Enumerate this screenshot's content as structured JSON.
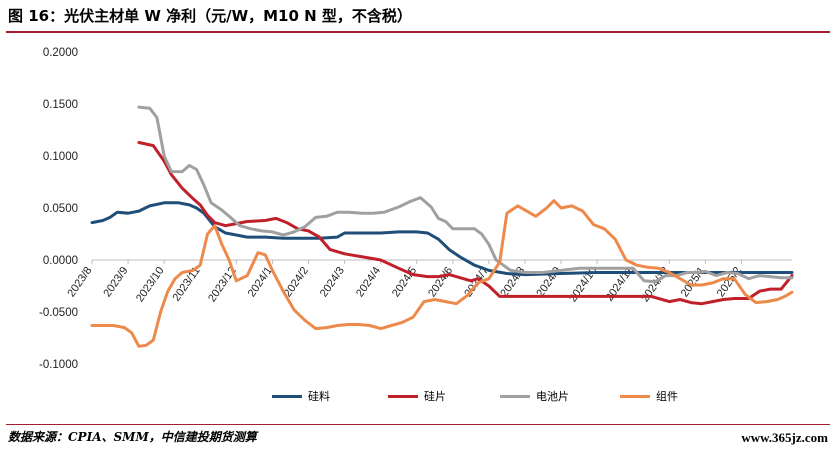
{
  "figure": {
    "title": "图 16：光伏主材单 W 净利（元/W，M10 N 型，不含税）",
    "source": "数据来源：CPIA、SMM，中信建投期货测算",
    "watermark": "www.365jz.com"
  },
  "chart_data": {
    "type": "line",
    "title": "",
    "xlabel": "",
    "ylabel": "",
    "ylim": [
      -0.1,
      0.2
    ],
    "yticks": [
      "0.2000",
      "0.1500",
      "0.1000",
      "0.0500",
      "0.0000",
      "-0.0500",
      "-0.1000"
    ],
    "ytick_values": [
      0.2,
      0.15,
      0.1,
      0.05,
      0.0,
      -0.05,
      -0.1
    ],
    "x_tick_labels": [
      "2023/8",
      "2023/9",
      "2023/10",
      "2023/11",
      "2023/12",
      "2024/1",
      "2024/2",
      "2024/3",
      "2024/4",
      "2024/5",
      "2024/6",
      "2024/7",
      "2024/8",
      "2024/9",
      "2024/10",
      "2024/11",
      "2024/12",
      "2025/1",
      "2025/2"
    ],
    "x_tick_display": [
      "2023/8",
      "2023/9",
      "2023/10",
      "2023/11",
      "2023/12",
      "2024/1",
      "2024/2",
      "2024/3",
      "2024/4",
      "2024/5",
      "2024/6",
      "2024/7",
      "2024/8",
      "2024/9",
      "2024/10",
      "2024/11",
      "2024/12",
      "2025/1",
      "2025/2"
    ],
    "x_range": [
      0,
      19.4
    ],
    "grid": false,
    "legend_position": "bottom",
    "series": [
      {
        "name": "硅料",
        "color": "#1f4e79",
        "points": [
          [
            0,
            0.036
          ],
          [
            0.3,
            0.038
          ],
          [
            0.5,
            0.041
          ],
          [
            0.7,
            0.046
          ],
          [
            1.0,
            0.045
          ],
          [
            1.3,
            0.047
          ],
          [
            1.6,
            0.052
          ],
          [
            2.0,
            0.055
          ],
          [
            2.4,
            0.055
          ],
          [
            2.7,
            0.053
          ],
          [
            2.9,
            0.05
          ],
          [
            3.1,
            0.045
          ],
          [
            3.4,
            0.032
          ],
          [
            3.7,
            0.026
          ],
          [
            4.0,
            0.024
          ],
          [
            4.3,
            0.022
          ],
          [
            4.8,
            0.022
          ],
          [
            5.3,
            0.021
          ],
          [
            5.8,
            0.021
          ],
          [
            6.3,
            0.021
          ],
          [
            6.8,
            0.022
          ],
          [
            7.0,
            0.026
          ],
          [
            7.5,
            0.026
          ],
          [
            8.0,
            0.026
          ],
          [
            8.5,
            0.027
          ],
          [
            9.0,
            0.027
          ],
          [
            9.3,
            0.026
          ],
          [
            9.6,
            0.02
          ],
          [
            9.9,
            0.01
          ],
          [
            10.2,
            0.003
          ],
          [
            10.6,
            -0.005
          ],
          [
            11.0,
            -0.01
          ],
          [
            11.5,
            -0.013
          ],
          [
            12.0,
            -0.014
          ],
          [
            13.0,
            -0.013
          ],
          [
            14.0,
            -0.012
          ],
          [
            15.0,
            -0.012
          ],
          [
            16.0,
            -0.012
          ],
          [
            17.0,
            -0.012
          ],
          [
            18.0,
            -0.012
          ],
          [
            19.0,
            -0.012
          ],
          [
            19.4,
            -0.012
          ]
        ]
      },
      {
        "name": "硅片",
        "color": "#c0202a",
        "points": [
          [
            1.3,
            0.113
          ],
          [
            1.7,
            0.11
          ],
          [
            2.0,
            0.095
          ],
          [
            2.2,
            0.082
          ],
          [
            2.5,
            0.069
          ],
          [
            2.8,
            0.059
          ],
          [
            3.0,
            0.053
          ],
          [
            3.2,
            0.043
          ],
          [
            3.4,
            0.036
          ],
          [
            3.7,
            0.033
          ],
          [
            4.0,
            0.035
          ],
          [
            4.3,
            0.037
          ],
          [
            4.8,
            0.038
          ],
          [
            5.1,
            0.04
          ],
          [
            5.4,
            0.036
          ],
          [
            5.7,
            0.03
          ],
          [
            6.0,
            0.028
          ],
          [
            6.3,
            0.022
          ],
          [
            6.6,
            0.01
          ],
          [
            7.0,
            0.006
          ],
          [
            7.5,
            0.003
          ],
          [
            8.0,
            0.0
          ],
          [
            8.5,
            -0.008
          ],
          [
            8.9,
            -0.014
          ],
          [
            9.3,
            -0.016
          ],
          [
            9.6,
            -0.016
          ],
          [
            9.9,
            -0.014
          ],
          [
            10.2,
            -0.017
          ],
          [
            10.5,
            -0.02
          ],
          [
            10.7,
            -0.018
          ],
          [
            11.0,
            -0.025
          ],
          [
            11.3,
            -0.035
          ],
          [
            11.6,
            -0.035
          ],
          [
            12.0,
            -0.035
          ],
          [
            12.5,
            -0.035
          ],
          [
            13.0,
            -0.035
          ],
          [
            13.5,
            -0.035
          ],
          [
            14.0,
            -0.035
          ],
          [
            14.5,
            -0.035
          ],
          [
            15.0,
            -0.035
          ],
          [
            15.5,
            -0.035
          ],
          [
            16.0,
            -0.04
          ],
          [
            16.3,
            -0.038
          ],
          [
            16.6,
            -0.041
          ],
          [
            16.9,
            -0.042
          ],
          [
            17.2,
            -0.04
          ],
          [
            17.5,
            -0.038
          ],
          [
            17.8,
            -0.037
          ],
          [
            18.2,
            -0.037
          ],
          [
            18.5,
            -0.03
          ],
          [
            18.8,
            -0.028
          ],
          [
            19.1,
            -0.028
          ],
          [
            19.4,
            -0.015
          ]
        ]
      },
      {
        "name": "电池片",
        "color": "#a0a0a0",
        "points": [
          [
            1.3,
            0.147
          ],
          [
            1.6,
            0.146
          ],
          [
            1.8,
            0.137
          ],
          [
            2.0,
            0.1
          ],
          [
            2.2,
            0.085
          ],
          [
            2.5,
            0.085
          ],
          [
            2.7,
            0.091
          ],
          [
            2.9,
            0.087
          ],
          [
            3.1,
            0.072
          ],
          [
            3.3,
            0.055
          ],
          [
            3.6,
            0.048
          ],
          [
            3.8,
            0.042
          ],
          [
            4.1,
            0.033
          ],
          [
            4.4,
            0.03
          ],
          [
            4.7,
            0.028
          ],
          [
            5.0,
            0.027
          ],
          [
            5.3,
            0.024
          ],
          [
            5.6,
            0.027
          ],
          [
            5.9,
            0.032
          ],
          [
            6.2,
            0.041
          ],
          [
            6.5,
            0.042
          ],
          [
            6.8,
            0.046
          ],
          [
            7.1,
            0.046
          ],
          [
            7.5,
            0.045
          ],
          [
            7.8,
            0.045
          ],
          [
            8.1,
            0.046
          ],
          [
            8.5,
            0.051
          ],
          [
            8.8,
            0.056
          ],
          [
            9.1,
            0.06
          ],
          [
            9.4,
            0.051
          ],
          [
            9.6,
            0.04
          ],
          [
            9.8,
            0.037
          ],
          [
            10.0,
            0.03
          ],
          [
            10.3,
            0.03
          ],
          [
            10.6,
            0.03
          ],
          [
            10.8,
            0.025
          ],
          [
            11.0,
            0.015
          ],
          [
            11.2,
            0.0
          ],
          [
            11.4,
            -0.005
          ],
          [
            11.6,
            -0.01
          ],
          [
            12.0,
            -0.012
          ],
          [
            12.5,
            -0.012
          ],
          [
            13.0,
            -0.01
          ],
          [
            13.5,
            -0.008
          ],
          [
            14.0,
            -0.008
          ],
          [
            14.5,
            -0.008
          ],
          [
            15.0,
            -0.008
          ],
          [
            15.3,
            -0.02
          ],
          [
            15.6,
            -0.021
          ],
          [
            15.9,
            -0.015
          ],
          [
            16.2,
            -0.015
          ],
          [
            16.5,
            -0.012
          ],
          [
            16.8,
            -0.012
          ],
          [
            17.0,
            -0.011
          ],
          [
            17.3,
            -0.015
          ],
          [
            17.6,
            -0.012
          ],
          [
            17.9,
            -0.013
          ],
          [
            18.2,
            -0.018
          ],
          [
            18.5,
            -0.015
          ],
          [
            18.8,
            -0.016
          ],
          [
            19.1,
            -0.017
          ],
          [
            19.4,
            -0.017
          ]
        ]
      },
      {
        "name": "组件",
        "color": "#ed8a4b",
        "points": [
          [
            0,
            -0.063
          ],
          [
            0.3,
            -0.063
          ],
          [
            0.6,
            -0.063
          ],
          [
            0.9,
            -0.065
          ],
          [
            1.1,
            -0.07
          ],
          [
            1.3,
            -0.083
          ],
          [
            1.5,
            -0.082
          ],
          [
            1.7,
            -0.077
          ],
          [
            1.9,
            -0.05
          ],
          [
            2.1,
            -0.03
          ],
          [
            2.3,
            -0.018
          ],
          [
            2.5,
            -0.012
          ],
          [
            2.8,
            -0.01
          ],
          [
            3.0,
            -0.005
          ],
          [
            3.2,
            0.025
          ],
          [
            3.4,
            0.033
          ],
          [
            3.6,
            0.015
          ],
          [
            3.8,
            0.0
          ],
          [
            4.0,
            -0.02
          ],
          [
            4.3,
            -0.015
          ],
          [
            4.6,
            0.007
          ],
          [
            4.8,
            0.005
          ],
          [
            5.0,
            -0.01
          ],
          [
            5.3,
            -0.03
          ],
          [
            5.6,
            -0.048
          ],
          [
            5.9,
            -0.058
          ],
          [
            6.2,
            -0.066
          ],
          [
            6.5,
            -0.065
          ],
          [
            6.8,
            -0.063
          ],
          [
            7.1,
            -0.062
          ],
          [
            7.4,
            -0.062
          ],
          [
            7.7,
            -0.063
          ],
          [
            8.0,
            -0.066
          ],
          [
            8.3,
            -0.063
          ],
          [
            8.6,
            -0.06
          ],
          [
            8.9,
            -0.055
          ],
          [
            9.2,
            -0.04
          ],
          [
            9.5,
            -0.038
          ],
          [
            9.8,
            -0.04
          ],
          [
            10.1,
            -0.042
          ],
          [
            10.4,
            -0.034
          ],
          [
            10.7,
            -0.022
          ],
          [
            11.0,
            -0.018
          ],
          [
            11.3,
            -0.002
          ],
          [
            11.5,
            0.045
          ],
          [
            11.8,
            0.052
          ],
          [
            12.0,
            0.048
          ],
          [
            12.3,
            0.042
          ],
          [
            12.6,
            0.05
          ],
          [
            12.8,
            0.057
          ],
          [
            13.0,
            0.05
          ],
          [
            13.3,
            0.052
          ],
          [
            13.6,
            0.047
          ],
          [
            13.9,
            0.034
          ],
          [
            14.2,
            0.03
          ],
          [
            14.5,
            0.02
          ],
          [
            14.8,
            0.0
          ],
          [
            15.1,
            -0.005
          ],
          [
            15.4,
            -0.007
          ],
          [
            15.7,
            -0.008
          ],
          [
            16.0,
            -0.012
          ],
          [
            16.3,
            -0.018
          ],
          [
            16.6,
            -0.024
          ],
          [
            16.9,
            -0.024
          ],
          [
            17.2,
            -0.022
          ],
          [
            17.5,
            -0.018
          ],
          [
            17.8,
            -0.018
          ],
          [
            18.1,
            -0.033
          ],
          [
            18.4,
            -0.041
          ],
          [
            18.7,
            -0.04
          ],
          [
            19.0,
            -0.038
          ],
          [
            19.2,
            -0.035
          ],
          [
            19.4,
            -0.031
          ]
        ]
      }
    ]
  }
}
